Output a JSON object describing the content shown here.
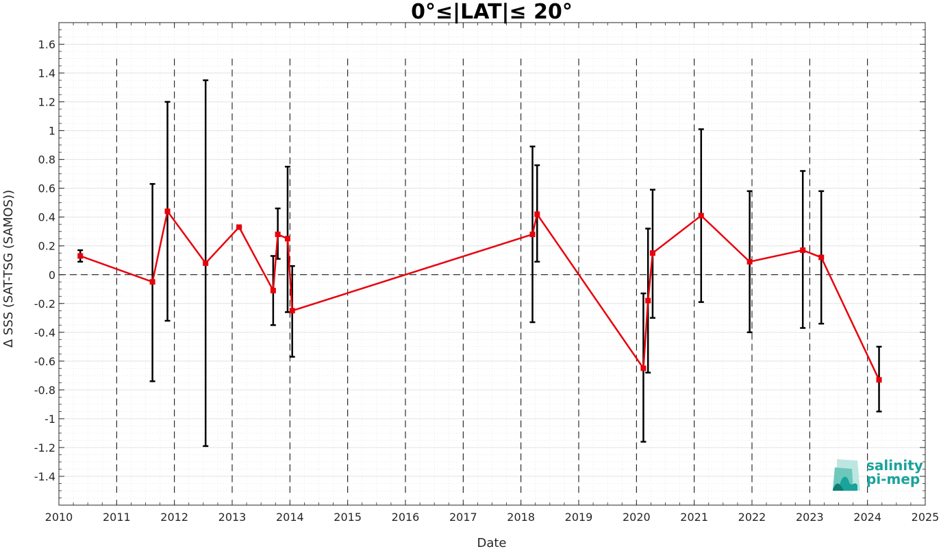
{
  "chart_data": {
    "type": "line",
    "title": "0°≤|LAT|≤ 20°",
    "xlabel": "Date",
    "ylabel": "Δ SSS (SAT-TSG (SAMOS))",
    "xlim": [
      2010,
      2025
    ],
    "ylim": [
      -1.6,
      1.75
    ],
    "x_ticks": [
      2010,
      2011,
      2012,
      2013,
      2014,
      2015,
      2016,
      2017,
      2018,
      2019,
      2020,
      2021,
      2022,
      2023,
      2024,
      2025
    ],
    "x_tick_labels": [
      "2010",
      "2011",
      "2012",
      "2013",
      "2014",
      "2015",
      "2016",
      "2017",
      "2018",
      "2019",
      "2020",
      "2021",
      "2022",
      "2023",
      "2024",
      "2025"
    ],
    "y_ticks": [
      -1.4,
      -1.2,
      -1,
      -0.8,
      -0.6,
      -0.4,
      -0.2,
      0,
      0.2,
      0.4,
      0.6,
      0.8,
      1,
      1.2,
      1.4,
      1.6
    ],
    "y_tick_labels": [
      "-1.4",
      "-1.2",
      "-1",
      "-0.8",
      "-0.6",
      "-0.4",
      "-0.2",
      "0",
      "0.2",
      "0.4",
      "0.6",
      "0.8",
      "1",
      "1.2",
      "1.4",
      "1.6"
    ],
    "grid": true,
    "minor_grid": true,
    "zero_line": true,
    "year_boundary_lines": true,
    "series": [
      {
        "color": "#e8000b",
        "marker": "square",
        "points": [
          {
            "x": 2010.37,
            "y": 0.13,
            "ylow": 0.09,
            "yhigh": 0.17
          },
          {
            "x": 2011.62,
            "y": -0.05,
            "ylow": -0.74,
            "yhigh": 0.63
          },
          {
            "x": 2011.88,
            "y": 0.44,
            "ylow": -0.32,
            "yhigh": 1.2
          },
          {
            "x": 2012.54,
            "y": 0.08,
            "ylow": -1.19,
            "yhigh": 1.35
          },
          {
            "x": 2013.12,
            "y": 0.33,
            "ylow": 0.33,
            "yhigh": 0.33
          },
          {
            "x": 2013.71,
            "y": -0.11,
            "ylow": -0.35,
            "yhigh": 0.13
          },
          {
            "x": 2013.79,
            "y": 0.28,
            "ylow": 0.11,
            "yhigh": 0.46
          },
          {
            "x": 2013.96,
            "y": 0.25,
            "ylow": -0.26,
            "yhigh": 0.75
          },
          {
            "x": 2014.04,
            "y": -0.25,
            "ylow": -0.57,
            "yhigh": 0.06
          },
          {
            "x": 2018.2,
            "y": 0.28,
            "ylow": -0.33,
            "yhigh": 0.89
          },
          {
            "x": 2018.28,
            "y": 0.42,
            "ylow": 0.09,
            "yhigh": 0.76
          },
          {
            "x": 2020.12,
            "y": -0.65,
            "ylow": -1.16,
            "yhigh": -0.13
          },
          {
            "x": 2020.2,
            "y": -0.18,
            "ylow": -0.68,
            "yhigh": 0.32
          },
          {
            "x": 2020.28,
            "y": 0.15,
            "ylow": -0.3,
            "yhigh": 0.59
          },
          {
            "x": 2021.12,
            "y": 0.41,
            "ylow": -0.19,
            "yhigh": 1.01
          },
          {
            "x": 2021.96,
            "y": 0.09,
            "ylow": -0.4,
            "yhigh": 0.58
          },
          {
            "x": 2022.88,
            "y": 0.17,
            "ylow": -0.37,
            "yhigh": 0.72
          },
          {
            "x": 2023.2,
            "y": 0.12,
            "ylow": -0.34,
            "yhigh": 0.58
          },
          {
            "x": 2024.2,
            "y": -0.73,
            "ylow": -0.95,
            "yhigh": -0.5
          }
        ]
      }
    ],
    "errorbar_color": "#000000"
  },
  "logo": {
    "line1": "salinity",
    "line2": "pi-mep",
    "color": "#1aa39a"
  }
}
